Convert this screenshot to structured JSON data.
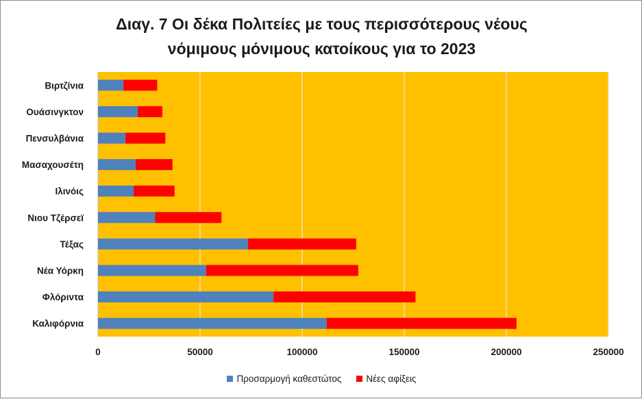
{
  "chart_data": {
    "type": "bar",
    "orientation": "horizontal",
    "stacked": true,
    "title_lines": [
      "Διαγ. 7  Οι δέκα Πολιτείες με τους περισσότερους νέους",
      "νόμιμους μόνιμους κατοίκους για το 2023"
    ],
    "categories": [
      "Βιρτζίνια",
      "Ουάσινγκτον",
      "Πενσυλβάνια",
      "Μασαχουσέτη",
      "Ιλινόις",
      "Νιου Τζέρσεϊ",
      "Τέξας",
      "Νέα Υόρκη",
      "Φλόριντα",
      "Καλιφόρνια"
    ],
    "series": [
      {
        "name": "Προσαρμογή καθεστώτος",
        "color": "#4f81bd",
        "values": [
          12500,
          19500,
          13500,
          18500,
          17500,
          28000,
          73500,
          53000,
          86000,
          112000
        ]
      },
      {
        "name": "Νέες αφίξεις",
        "color": "#ff0000",
        "values": [
          16500,
          12000,
          19500,
          18000,
          20000,
          32500,
          53000,
          74500,
          69500,
          93000
        ]
      }
    ],
    "xlim": [
      0,
      250000
    ],
    "xticks": [
      "0",
      "50000",
      "100000",
      "150000",
      "200000",
      "250000"
    ],
    "plot_background": "#ffc000",
    "gridlines": true,
    "legend_position": "bottom"
  }
}
